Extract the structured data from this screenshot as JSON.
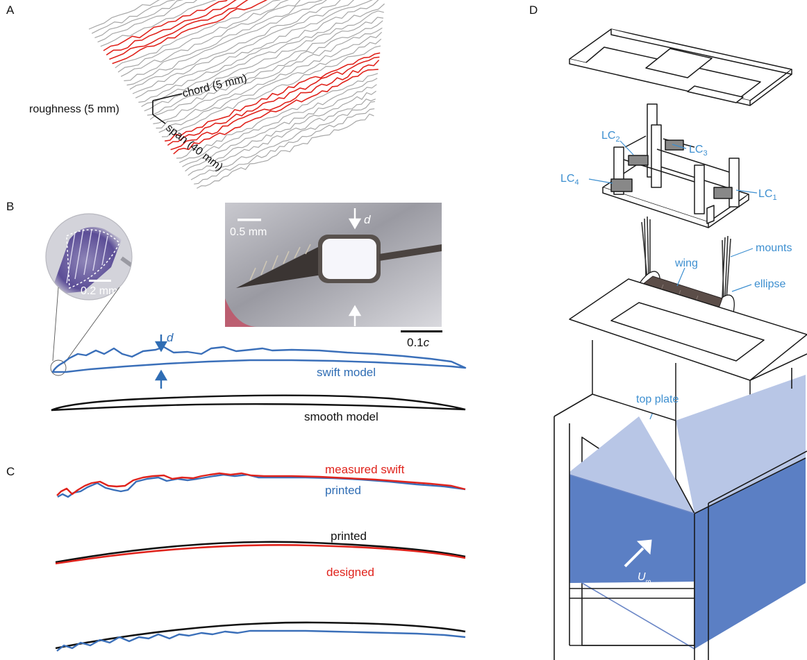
{
  "panels": {
    "a": "A",
    "b": "B",
    "c": "C",
    "d": "D"
  },
  "panel_a": {
    "axis_roughness": "roughness (5 mm)",
    "axis_chord": "chord (5 mm)",
    "axis_span": "span (40 mm)"
  },
  "panel_b": {
    "inset_scale": "0.2 mm",
    "photo_scale": "0.5 mm",
    "thickness_symbol": "d",
    "scalebar_label": "0.1",
    "scalebar_unit": "c",
    "swift_model": "swift model",
    "smooth_model": "smooth model"
  },
  "panel_c": {
    "measured_swift": "measured swift",
    "printed_top": "printed",
    "printed_mid": "printed",
    "designed": "designed"
  },
  "panel_d": {
    "lc1": "LC",
    "lc1_sub": "1",
    "lc2": "LC",
    "lc2_sub": "2",
    "lc3": "LC",
    "lc3_sub": "3",
    "lc4": "LC",
    "lc4_sub": "4",
    "mounts": "mounts",
    "wing": "wing",
    "ellipse": "ellipse",
    "top_plate": "top plate",
    "flow": "U",
    "flow_sub": "∞"
  },
  "colors": {
    "red": "#e0231c",
    "blue": "#3a6fb9",
    "gray": "#a6a6a6",
    "label_blue": "#3d8fd0",
    "water": "#5b7fc4",
    "water_light": "#b8c6e6"
  }
}
